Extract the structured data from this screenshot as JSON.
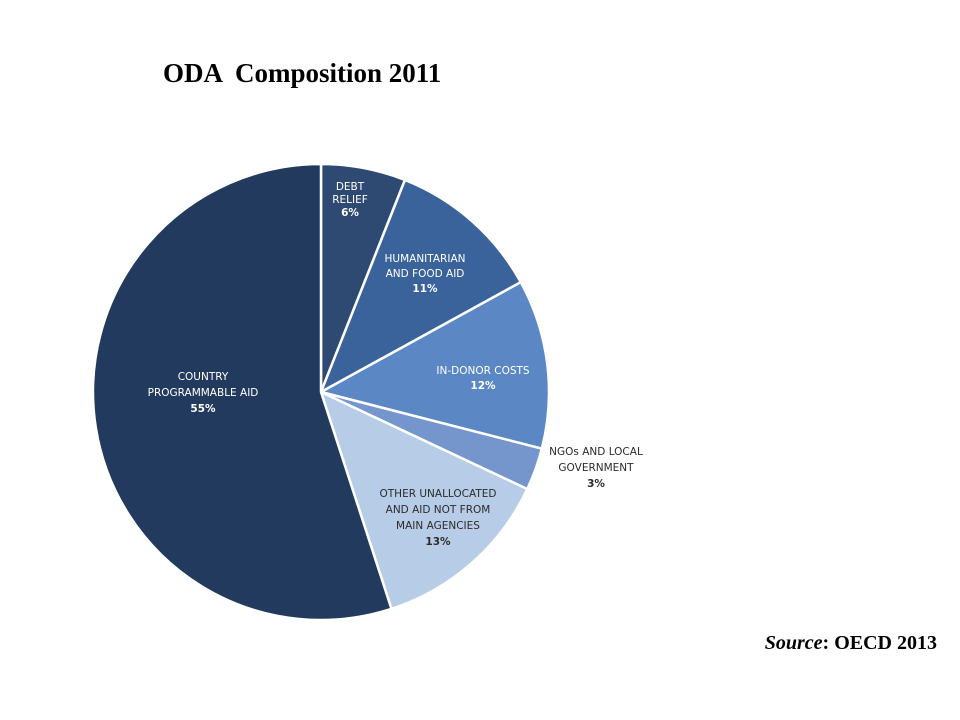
{
  "title": "ODA  Composition 2011",
  "source": {
    "prefix": "Source",
    "separator": ": ",
    "text": "OECD 2013"
  },
  "chart_data": {
    "type": "pie",
    "title": "ODA  Composition 2011",
    "slices": [
      {
        "label": [
          "DEBT",
          "RELIEF"
        ],
        "value": 6,
        "display": "6%",
        "color": "#2e4a72",
        "label_color": "#ffffff"
      },
      {
        "label": [
          "HUMANITARIAN",
          "AND FOOD AID"
        ],
        "value": 11,
        "display": "11%",
        "color": "#3b639b",
        "label_color": "#ffffff"
      },
      {
        "label": [
          "IN-DONOR COSTS"
        ],
        "value": 12,
        "display": "12%",
        "color": "#5b88c5",
        "label_color": "#ffffff"
      },
      {
        "label": [
          "NGOs AND LOCAL",
          "GOVERNMENT"
        ],
        "value": 3,
        "display": "3%",
        "color": "#7596cc",
        "label_color": "#2b2b2b"
      },
      {
        "label": [
          "OTHER UNALLOCATED",
          "AND AID NOT FROM",
          "MAIN AGENCIES"
        ],
        "value": 13,
        "display": "13%",
        "color": "#b7cce6",
        "label_color": "#2b2b2b"
      },
      {
        "label": [
          "COUNTRY",
          "PROGRAMMABLE AID"
        ],
        "value": 55,
        "display": "55%",
        "color": "#223a5e",
        "label_color": "#ffffff"
      }
    ],
    "start_angle_deg": 0,
    "direction": "clockwise",
    "legend": "none"
  }
}
